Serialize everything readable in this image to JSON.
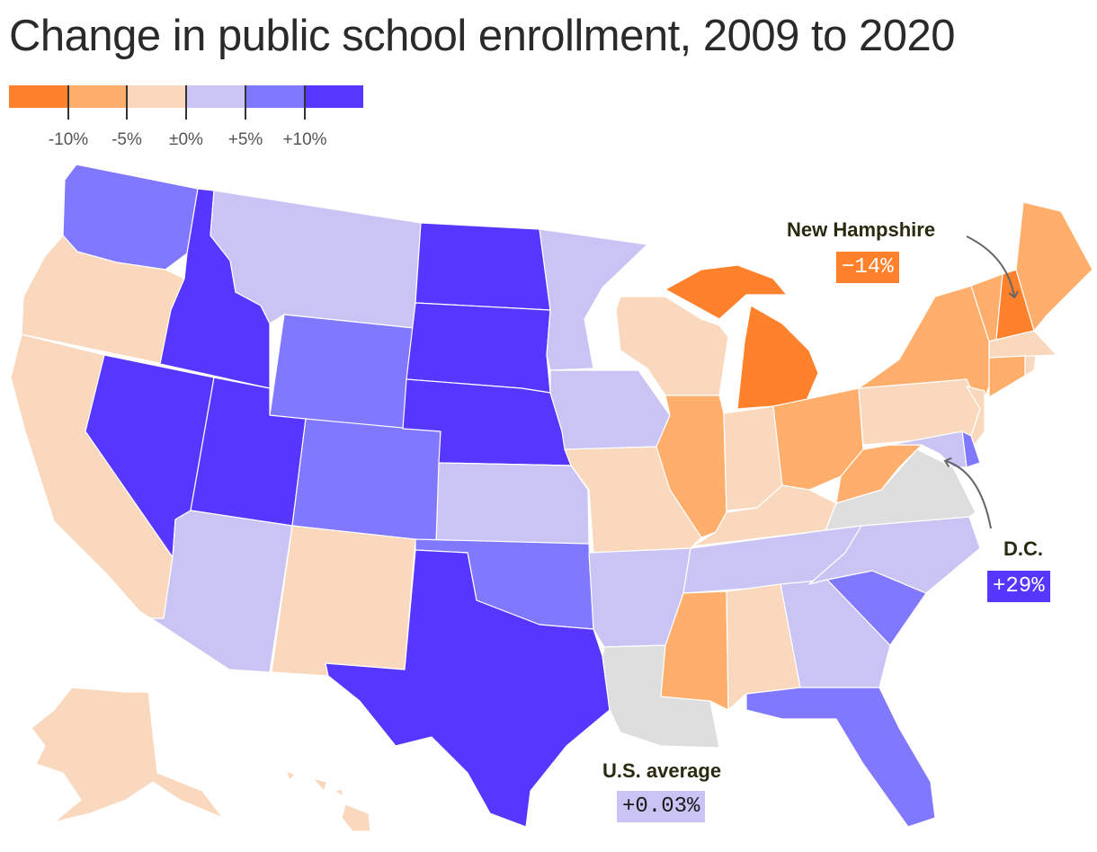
{
  "title": "Change in public school enrollment, 2009 to 2020",
  "legend": {
    "colors": [
      "#ff812b",
      "#ffae6b",
      "#fad8bd",
      "#c9c4f4",
      "#8078ff",
      "#5737ff"
    ],
    "labels": [
      "-10%",
      "-5%",
      "±0%",
      "+5%",
      "+10%"
    ]
  },
  "no_data_color": "#dedede",
  "callouts": {
    "new_hampshire": {
      "name": "New Hampshire",
      "value": "−14%",
      "color": "#ff812b"
    },
    "dc": {
      "name": "D.C.",
      "value": "+29%",
      "color": "#5737ff"
    },
    "us_average": {
      "name": "U.S. average",
      "value": "+0.03%",
      "color": "#c9c4f4"
    }
  },
  "states": {
    "WA": 5,
    "OR": 3,
    "CA": 3,
    "ID": 6,
    "NV": 6,
    "MT": 4,
    "WY": 5,
    "UT": 6,
    "AZ": 4,
    "CO": 5,
    "NM": 3,
    "ND": 6,
    "SD": 6,
    "NE": 6,
    "KS": 4,
    "OK": 5,
    "TX": 6,
    "MN": 4,
    "IA": 4,
    "MO": 3,
    "AR": 4,
    "LA": 0,
    "WI": 3,
    "IL": 2,
    "MI": 1,
    "IN": 3,
    "OH": 2,
    "KY": 3,
    "TN": 4,
    "MS": 2,
    "AL": 3,
    "GA": 4,
    "FL": 5,
    "SC": 5,
    "NC": 4,
    "VA": 0,
    "WV": 2,
    "PA": 3,
    "NY": 2,
    "VT": 2,
    "NH": 1,
    "ME": 2,
    "MA": 3,
    "CT": 2,
    "RI": 3,
    "NJ": 3,
    "DE": 5,
    "MD": 4,
    "AK": 3,
    "HI": 3
  }
}
